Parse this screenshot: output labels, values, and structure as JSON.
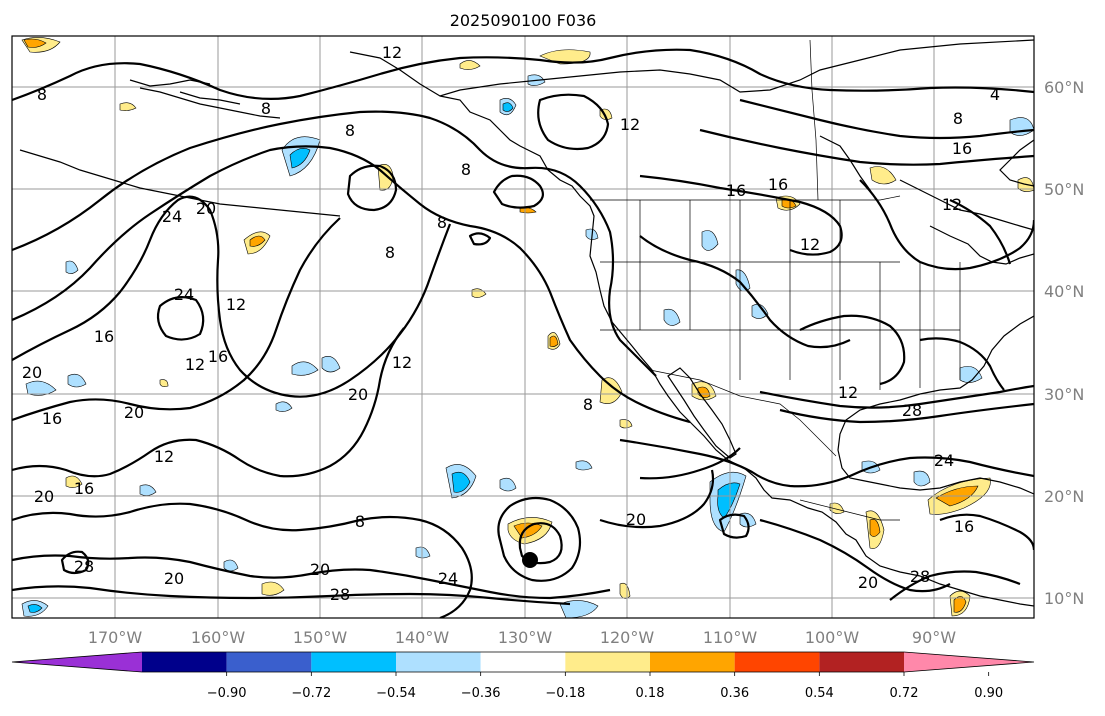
{
  "title": "2025090100 F036",
  "lat_labels": [
    "60°N",
    "50°N",
    "40°N",
    "30°N",
    "20°N",
    "10°N"
  ],
  "lon_labels": [
    "170°W",
    "160°W",
    "150°W",
    "140°W",
    "130°W",
    "120°W",
    "110°W",
    "100°W",
    "90°W"
  ],
  "contour_labels": [
    "4",
    "8",
    "12",
    "16",
    "20",
    "24",
    "28"
  ],
  "colorbar": {
    "ticks": [
      "−0.90",
      "−0.72",
      "−0.54",
      "−0.36",
      "−0.18",
      "0.18",
      "0.36",
      "0.54",
      "0.72",
      "0.90"
    ],
    "colors": [
      "#9a30d6",
      "#00008b",
      "#3a5fcd",
      "#00bfff",
      "#aee0ff",
      "#ffffff",
      "#ffec8b",
      "#ffa500",
      "#ff4500",
      "#b22222",
      "#ff88aa"
    ]
  }
}
